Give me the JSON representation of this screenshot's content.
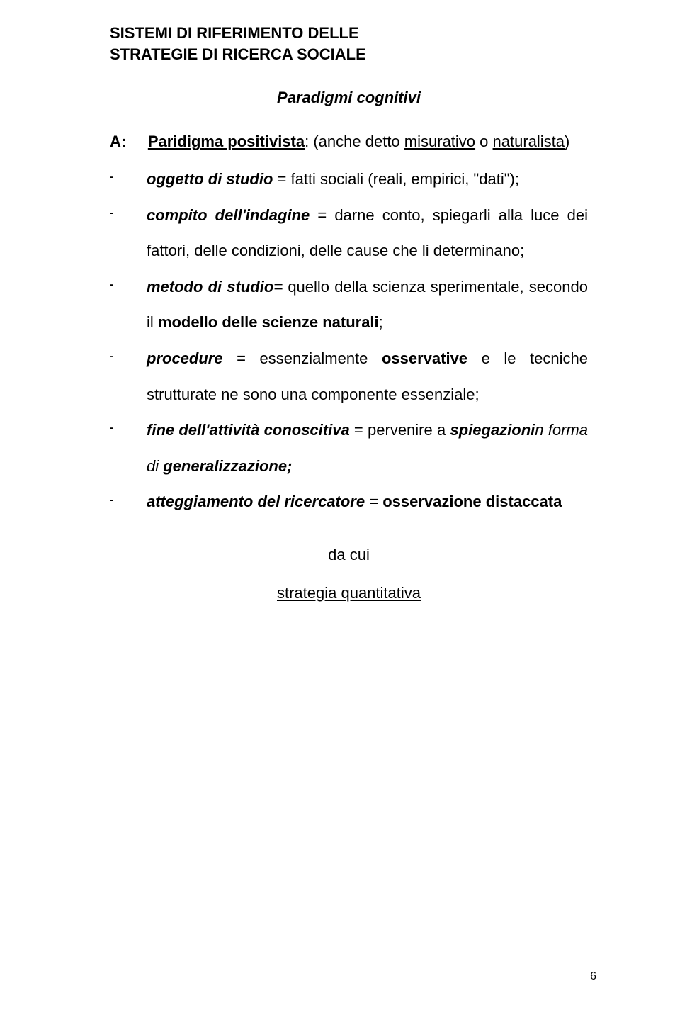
{
  "title_line1": "SISTEMI DI RIFERIMENTO DELLE",
  "title_line2": "STRATEGIE DI RICERCA SOCIALE",
  "subtitle": "Paradigmi cognitivi",
  "intro": {
    "label_a": "A:",
    "term": "Paridigma positivista",
    "colon": ":",
    "between": " (anche detto ",
    "under1": "misurativo",
    "o": " o ",
    "under2": "naturalista",
    "close": ")"
  },
  "items": [
    {
      "prefix": "oggetto di studio",
      "rest": " = fatti sociali (reali, empirici, \"dati\");"
    },
    {
      "prefix": "compito dell'indagine",
      "rest": " = darne conto, spiegarli alla luce dei fattori, delle condizioni, delle cause che li determinano;"
    },
    {
      "prefix": "metodo di studio=",
      "rest_pre": " quello della scienza sperimentale, secondo il ",
      "bold_tail": "modello delle scienze naturali",
      "rest_post": ";"
    },
    {
      "prefix": "procedure",
      "rest_pre": " = essenzialmente ",
      "bold1": "osservative",
      "rest_mid": " e le tecniche strutturate ne sono una componente essenziale;"
    },
    {
      "prefix": "fine dell'attività conoscitiva",
      "rest_pre": " = pervenire a ",
      "bi1": "spiegazioni",
      "rest_mid2": "n forma di ",
      "bi2": "generalizzazione;",
      "rest_post": ""
    },
    {
      "prefix": "atteggiamento del ricercatore",
      "rest_pre": " = ",
      "bold1": "osservazione distaccata",
      "rest_post": ""
    }
  ],
  "closing": {
    "dacui": "da cui",
    "strategia": "strategia quantitativa"
  },
  "page_number": "6"
}
